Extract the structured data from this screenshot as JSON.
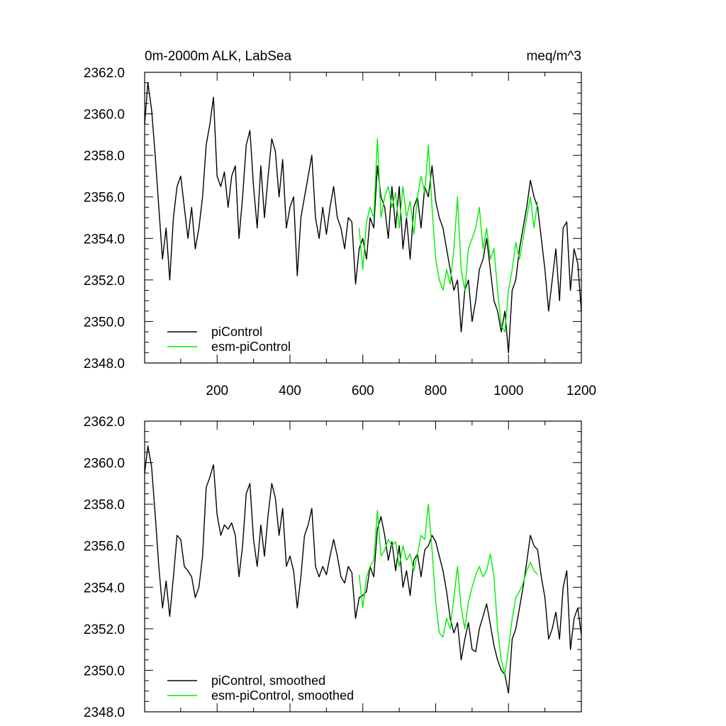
{
  "title_left": "0m-2000m ALK, LabSea",
  "title_right": "meq/m^3",
  "colors": {
    "picontrol": "#000000",
    "esm_picontrol": "#00ee00",
    "axis": "#000000",
    "background": "#ffffff"
  },
  "chart_data": [
    {
      "type": "line",
      "title": "0m-2000m ALK, LabSea",
      "units": "meq/m^3",
      "xlim": [
        1,
        1200
      ],
      "ylim": [
        2348.0,
        2362.0
      ],
      "x_ticks": [
        200,
        400,
        600,
        800,
        1000,
        1200
      ],
      "x_tick_labels": [
        "200",
        "400",
        "600",
        "800",
        "1000",
        "1200"
      ],
      "y_ticks": [
        "2362.0",
        "2360.0",
        "2358.0",
        "2356.0",
        "2354.0",
        "2352.0",
        "2350.0",
        "2348.0"
      ],
      "legend_position": "bottom-left",
      "grid": false,
      "series": [
        {
          "name": "piControl",
          "color": "#000000",
          "x": [
            1,
            10,
            20,
            30,
            40,
            50,
            60,
            70,
            80,
            90,
            100,
            110,
            120,
            130,
            140,
            150,
            160,
            170,
            180,
            190,
            200,
            210,
            220,
            230,
            240,
            250,
            260,
            270,
            280,
            290,
            300,
            310,
            320,
            330,
            340,
            350,
            360,
            370,
            380,
            390,
            400,
            410,
            420,
            430,
            440,
            450,
            460,
            470,
            480,
            490,
            500,
            510,
            520,
            530,
            540,
            550,
            560,
            570,
            580,
            590,
            600,
            610,
            620,
            630,
            640,
            650,
            660,
            670,
            680,
            690,
            700,
            710,
            720,
            730,
            740,
            750,
            760,
            770,
            780,
            790,
            800,
            810,
            820,
            830,
            840,
            850,
            860,
            870,
            880,
            890,
            900,
            910,
            920,
            930,
            940,
            950,
            960,
            970,
            980,
            990,
            1000,
            1010,
            1020,
            1030,
            1040,
            1050,
            1060,
            1070,
            1080,
            1090,
            1100,
            1110,
            1120,
            1130,
            1140,
            1150,
            1160,
            1170,
            1180,
            1190,
            1200
          ],
          "y": [
            2359.5,
            2361.5,
            2360.2,
            2358.0,
            2355.5,
            2353.0,
            2354.5,
            2352.0,
            2355.0,
            2356.5,
            2357.0,
            2355.5,
            2354.0,
            2355.5,
            2353.5,
            2354.5,
            2356.0,
            2358.5,
            2359.5,
            2360.8,
            2357.0,
            2356.5,
            2357.2,
            2355.5,
            2357.0,
            2357.5,
            2354.0,
            2356.0,
            2358.5,
            2359.2,
            2356.5,
            2354.5,
            2357.5,
            2355.0,
            2357.0,
            2358.8,
            2358.2,
            2356.0,
            2357.8,
            2354.5,
            2355.5,
            2356.0,
            2352.2,
            2355.0,
            2356.0,
            2357.0,
            2358.0,
            2355.0,
            2354.0,
            2355.5,
            2354.2,
            2355.5,
            2356.5,
            2355.0,
            2354.5,
            2353.5,
            2355.0,
            2354.8,
            2351.8,
            2353.5,
            2354.0,
            2353.0,
            2355.0,
            2354.5,
            2357.5,
            2356.0,
            2355.5,
            2354.0,
            2356.5,
            2354.5,
            2356.5,
            2353.5,
            2355.0,
            2353.0,
            2355.5,
            2356.0,
            2354.5,
            2356.5,
            2356.0,
            2357.5,
            2355.8,
            2355.0,
            2354.5,
            2353.5,
            2352.5,
            2351.5,
            2352.0,
            2349.5,
            2351.5,
            2352.0,
            2350.0,
            2351.0,
            2352.5,
            2353.0,
            2354.0,
            2352.5,
            2351.0,
            2350.5,
            2349.5,
            2350.5,
            2348.5,
            2351.5,
            2352.0,
            2353.5,
            2354.5,
            2355.5,
            2356.8,
            2356.0,
            2355.5,
            2354.0,
            2352.5,
            2350.5,
            2352.0,
            2353.5,
            2351.0,
            2354.5,
            2354.8,
            2351.5,
            2353.5,
            2352.8,
            2350.5
          ]
        },
        {
          "name": "esm-piControl",
          "color": "#00ee00",
          "x": [
            590,
            600,
            610,
            620,
            630,
            640,
            650,
            660,
            670,
            680,
            690,
            700,
            710,
            720,
            730,
            740,
            750,
            760,
            770,
            780,
            790,
            800,
            810,
            820,
            830,
            840,
            850,
            860,
            870,
            880,
            890,
            900,
            910,
            920,
            930,
            940,
            950,
            960,
            970,
            980,
            990,
            1000,
            1010,
            1020,
            1030,
            1040,
            1050,
            1060,
            1070,
            1080
          ],
          "y": [
            2354.5,
            2352.5,
            2354.8,
            2355.5,
            2355.0,
            2358.8,
            2355.0,
            2356.0,
            2356.5,
            2355.5,
            2356.2,
            2354.5,
            2356.5,
            2355.0,
            2355.8,
            2354.2,
            2356.0,
            2357.0,
            2356.2,
            2358.5,
            2355.5,
            2353.0,
            2352.0,
            2351.5,
            2352.5,
            2351.8,
            2353.5,
            2356.0,
            2352.5,
            2351.5,
            2353.5,
            2354.0,
            2354.5,
            2355.5,
            2353.5,
            2354.5,
            2353.0,
            2353.5,
            2351.5,
            2349.8,
            2349.5,
            2351.5,
            2352.5,
            2353.8,
            2353.0,
            2354.0,
            2355.0,
            2356.0,
            2354.5,
            2355.8
          ]
        }
      ]
    },
    {
      "type": "line",
      "title": "",
      "xlim": [
        1,
        1200
      ],
      "ylim": [
        2348.0,
        2362.0
      ],
      "x_ticks": [
        200,
        400,
        600,
        800,
        1000,
        1200
      ],
      "y_ticks": [
        "2362.0",
        "2360.0",
        "2358.0",
        "2356.0",
        "2354.0",
        "2352.0",
        "2350.0",
        "2348.0"
      ],
      "legend_position": "bottom-left",
      "grid": false,
      "series": [
        {
          "name": "piControl, smoothed",
          "color": "#000000",
          "x": [
            1,
            10,
            20,
            30,
            40,
            50,
            60,
            70,
            80,
            90,
            100,
            110,
            120,
            130,
            140,
            150,
            160,
            170,
            180,
            190,
            200,
            210,
            220,
            230,
            240,
            250,
            260,
            270,
            280,
            290,
            300,
            310,
            320,
            330,
            340,
            350,
            360,
            370,
            380,
            390,
            400,
            410,
            420,
            430,
            440,
            450,
            460,
            470,
            480,
            490,
            500,
            510,
            520,
            530,
            540,
            550,
            560,
            570,
            580,
            590,
            600,
            610,
            620,
            630,
            640,
            650,
            660,
            670,
            680,
            690,
            700,
            710,
            720,
            730,
            740,
            750,
            760,
            770,
            780,
            790,
            800,
            810,
            820,
            830,
            840,
            850,
            860,
            870,
            880,
            890,
            900,
            910,
            920,
            930,
            940,
            950,
            960,
            970,
            980,
            990,
            1000,
            1010,
            1020,
            1030,
            1040,
            1050,
            1060,
            1070,
            1080,
            1090,
            1100,
            1110,
            1120,
            1130,
            1140,
            1150,
            1160,
            1170,
            1180,
            1190,
            1200
          ],
          "y": [
            2359.5,
            2360.8,
            2359.8,
            2357.5,
            2355.0,
            2353.0,
            2354.3,
            2352.6,
            2354.5,
            2356.5,
            2356.3,
            2355.0,
            2354.8,
            2354.5,
            2353.5,
            2354.0,
            2355.5,
            2358.8,
            2359.3,
            2359.9,
            2357.5,
            2356.5,
            2357.0,
            2356.8,
            2357.1,
            2356.5,
            2354.5,
            2356.0,
            2358.5,
            2359.0,
            2356.3,
            2355.0,
            2357.0,
            2355.5,
            2357.5,
            2359.0,
            2358.3,
            2356.5,
            2357.8,
            2355.0,
            2355.5,
            2354.8,
            2353.0,
            2354.5,
            2356.5,
            2357.0,
            2357.8,
            2355.0,
            2354.5,
            2355.0,
            2354.6,
            2355.5,
            2356.3,
            2355.5,
            2354.5,
            2354.2,
            2355.0,
            2354.7,
            2352.5,
            2353.5,
            2353.6,
            2353.8,
            2355.0,
            2354.5,
            2356.8,
            2357.4,
            2356.5,
            2355.3,
            2356.2,
            2354.8,
            2356.0,
            2354.0,
            2354.8,
            2353.6,
            2355.3,
            2355.6,
            2354.5,
            2355.8,
            2356.0,
            2356.5,
            2356.2,
            2355.5,
            2354.8,
            2353.8,
            2352.5,
            2351.8,
            2352.3,
            2350.5,
            2351.5,
            2352.3,
            2351.0,
            2350.9,
            2352.0,
            2352.6,
            2353.2,
            2352.2,
            2351.2,
            2350.5,
            2350.0,
            2349.8,
            2348.9,
            2351.5,
            2352.0,
            2353.0,
            2354.0,
            2355.2,
            2356.5,
            2356.0,
            2355.8,
            2354.5,
            2353.5,
            2351.5,
            2352.0,
            2352.8,
            2351.5,
            2354.0,
            2354.8,
            2351.0,
            2352.5,
            2353.0,
            2351.7
          ]
        },
        {
          "name": "esm-piControl, smoothed",
          "color": "#00ee00",
          "x": [
            590,
            600,
            610,
            620,
            630,
            640,
            650,
            660,
            670,
            680,
            690,
            700,
            710,
            720,
            730,
            740,
            750,
            760,
            770,
            780,
            790,
            800,
            810,
            820,
            830,
            840,
            850,
            860,
            870,
            880,
            890,
            900,
            910,
            920,
            930,
            940,
            950,
            960,
            970,
            980,
            990,
            1000,
            1010,
            1020,
            1030,
            1040,
            1050,
            1060,
            1070,
            1080
          ],
          "y": [
            2354.6,
            2353.0,
            2354.5,
            2355.0,
            2355.3,
            2357.7,
            2355.5,
            2355.8,
            2356.3,
            2356.0,
            2356.2,
            2355.0,
            2356.0,
            2355.3,
            2355.6,
            2354.8,
            2355.6,
            2356.5,
            2356.3,
            2358.0,
            2355.8,
            2353.3,
            2351.8,
            2351.6,
            2352.5,
            2352.0,
            2353.5,
            2355.0,
            2353.0,
            2352.0,
            2353.3,
            2354.0,
            2354.6,
            2355.0,
            2354.5,
            2354.8,
            2355.6,
            2354.5,
            2352.0,
            2350.5,
            2349.8,
            2351.0,
            2352.5,
            2353.5,
            2353.8,
            2354.2,
            2354.8,
            2355.2,
            2354.8,
            2354.6
          ]
        }
      ]
    }
  ]
}
